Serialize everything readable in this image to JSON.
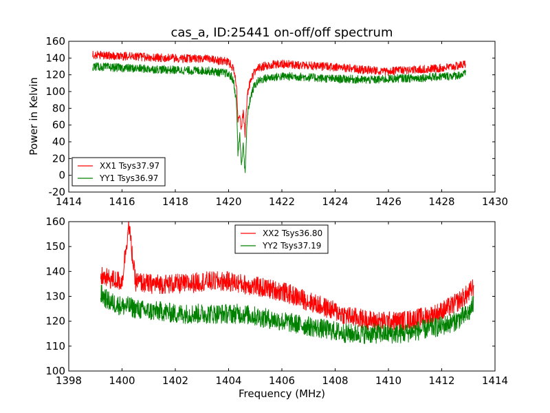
{
  "figure": {
    "title": "cas_a, ID:25441 on-off/off spectrum",
    "colors": {
      "red": "#ff0000",
      "green": "#008000"
    }
  },
  "chart_data": [
    {
      "type": "line",
      "title": "cas_a, ID:25441 on-off/off spectrum",
      "xlabel": "",
      "ylabel": "Power in Kelvin",
      "xlim": [
        1414,
        1430
      ],
      "ylim": [
        -20,
        160
      ],
      "xticks": [
        1414,
        1416,
        1418,
        1420,
        1422,
        1424,
        1426,
        1428,
        1430
      ],
      "yticks": [
        -20,
        0,
        20,
        40,
        60,
        80,
        100,
        120,
        140,
        160
      ],
      "grid": false,
      "legend_position": "lower-left",
      "series": [
        {
          "name": "XX1 Tsys37.97",
          "color": "#ff0000",
          "x": [
            1414.9,
            1415.5,
            1416.2,
            1417.0,
            1417.8,
            1418.6,
            1419.2,
            1419.6,
            1419.9,
            1420.1,
            1420.2,
            1420.3,
            1420.35,
            1420.42,
            1420.48,
            1420.55,
            1420.62,
            1420.7,
            1420.8,
            1420.95,
            1421.1,
            1421.3,
            1421.6,
            1422.0,
            1422.5,
            1423.0,
            1423.5,
            1424.0,
            1424.5,
            1425.0,
            1425.5,
            1426.0,
            1426.5,
            1427.0,
            1427.5,
            1428.0,
            1428.5,
            1428.9
          ],
          "values": [
            144,
            143,
            142,
            141,
            140,
            139,
            139,
            137,
            136,
            132,
            125,
            105,
            65,
            72,
            55,
            75,
            50,
            95,
            110,
            122,
            128,
            130,
            132,
            133,
            132,
            131,
            130,
            129,
            128,
            126,
            125,
            124,
            125,
            126,
            127,
            128,
            130,
            133
          ],
          "noise": 5
        },
        {
          "name": "YY1 Tsys36.97",
          "color": "#008000",
          "x": [
            1414.9,
            1415.5,
            1416.2,
            1417.0,
            1417.8,
            1418.6,
            1419.2,
            1419.6,
            1419.9,
            1420.1,
            1420.2,
            1420.3,
            1420.35,
            1420.42,
            1420.48,
            1420.55,
            1420.62,
            1420.7,
            1420.8,
            1420.95,
            1421.1,
            1421.3,
            1421.6,
            1422.0,
            1422.5,
            1423.0,
            1423.5,
            1424.0,
            1424.5,
            1425.0,
            1425.5,
            1426.0,
            1426.5,
            1427.0,
            1427.5,
            1428.0,
            1428.5,
            1428.9
          ],
          "values": [
            130,
            129,
            128,
            127,
            126,
            125,
            125,
            123,
            122,
            118,
            110,
            85,
            25,
            50,
            10,
            40,
            0,
            70,
            90,
            106,
            112,
            115,
            117,
            118,
            118,
            117,
            116,
            115,
            115,
            114,
            114,
            115,
            116,
            116,
            117,
            118,
            119,
            121
          ],
          "noise": 5
        }
      ]
    },
    {
      "type": "line",
      "title": "",
      "xlabel": "Frequency (MHz)",
      "ylabel": "",
      "xlim": [
        1398,
        1414
      ],
      "ylim": [
        100,
        160
      ],
      "xticks": [
        1398,
        1400,
        1402,
        1404,
        1406,
        1408,
        1410,
        1412,
        1414
      ],
      "yticks": [
        100,
        110,
        120,
        130,
        140,
        150,
        160
      ],
      "grid": false,
      "legend_position": "upper-center",
      "series": [
        {
          "name": "XX2 Tsys36.80",
          "color": "#ff0000",
          "x": [
            1399.2,
            1399.5,
            1400.0,
            1400.25,
            1400.5,
            1401.0,
            1401.5,
            1402.0,
            1402.5,
            1403.0,
            1403.5,
            1404.0,
            1404.5,
            1405.0,
            1405.5,
            1406.0,
            1406.5,
            1407.0,
            1407.5,
            1408.0,
            1408.5,
            1409.0,
            1409.5,
            1410.0,
            1410.5,
            1411.0,
            1411.5,
            1412.0,
            1412.5,
            1413.0,
            1413.2
          ],
          "values": [
            138,
            137,
            136,
            159,
            136,
            135,
            135,
            135,
            135,
            136,
            136,
            136,
            135,
            134,
            133,
            132,
            130,
            128,
            126,
            124,
            122,
            121,
            120,
            120,
            120,
            121,
            122,
            124,
            127,
            131,
            134
          ],
          "noise": 4
        },
        {
          "name": "YY2 Tsys37.19",
          "color": "#008000",
          "x": [
            1399.2,
            1399.5,
            1400.0,
            1400.25,
            1400.5,
            1401.0,
            1401.5,
            1402.0,
            1402.5,
            1403.0,
            1403.5,
            1404.0,
            1404.5,
            1405.0,
            1405.5,
            1406.0,
            1406.5,
            1407.0,
            1407.5,
            1408.0,
            1408.5,
            1409.0,
            1409.5,
            1410.0,
            1410.5,
            1411.0,
            1411.5,
            1412.0,
            1412.5,
            1413.0,
            1413.2
          ],
          "values": [
            131,
            128,
            126,
            126,
            125,
            124,
            124,
            123,
            123,
            123,
            123,
            123,
            123,
            122,
            121,
            120,
            119,
            118,
            117,
            116,
            115,
            115,
            115,
            115,
            115,
            116,
            117,
            118,
            120,
            123,
            127
          ],
          "noise": 4
        }
      ]
    }
  ]
}
